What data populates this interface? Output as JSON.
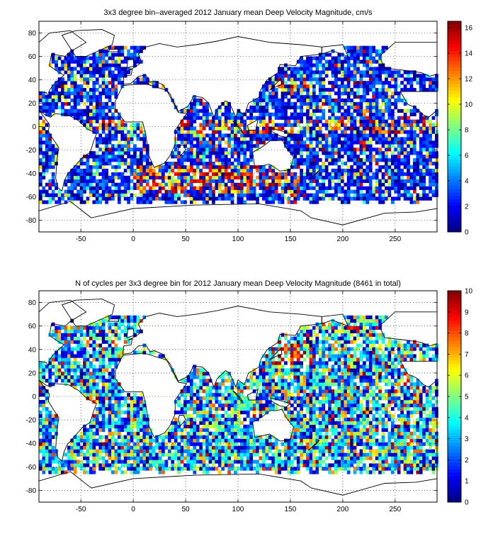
{
  "charts": [
    {
      "title": "3x3 degree bin–averaged 2012 January mean Deep Velocity Magnitude, cm/s",
      "colorbar": {
        "min": 0,
        "max": 16.5,
        "ticks": [
          0,
          2,
          4,
          6,
          8,
          10,
          12,
          14,
          16
        ]
      }
    },
    {
      "title": "N of cycles per 3x3 degree bin for 2012 January mean Deep Velocity Magnitude (8461 in total)",
      "colorbar": {
        "min": 0,
        "max": 10,
        "ticks": [
          0,
          1,
          2,
          3,
          4,
          5,
          6,
          7,
          8,
          9,
          10
        ]
      }
    }
  ],
  "chart_data": [
    {
      "type": "heatmap",
      "title": "3x3 degree bin–averaged 2012 January mean Deep Velocity Magnitude, cm/s",
      "xlim": [
        -90,
        290
      ],
      "ylim": [
        -90,
        90
      ],
      "xticks": [
        -50,
        0,
        50,
        100,
        150,
        200,
        250
      ],
      "yticks": [
        -80,
        -60,
        -40,
        -20,
        0,
        20,
        40,
        60,
        80
      ],
      "grid": true,
      "colormap": "jet",
      "color_range": [
        0,
        16.5
      ],
      "bin_size_deg": 3,
      "units": "cm/s"
    },
    {
      "type": "heatmap",
      "title": "N of cycles per 3x3 degree bin for 2012 January mean Deep Velocity Magnitude (8461 in total)",
      "xlim": [
        -90,
        290
      ],
      "ylim": [
        -90,
        90
      ],
      "xticks": [
        -50,
        0,
        50,
        100,
        150,
        200,
        250
      ],
      "yticks": [
        -80,
        -60,
        -40,
        -20,
        0,
        20,
        40,
        60,
        80
      ],
      "grid": true,
      "colormap": "jet",
      "color_range": [
        0,
        10
      ],
      "bin_size_deg": 3,
      "total_cycles": 8461
    }
  ]
}
